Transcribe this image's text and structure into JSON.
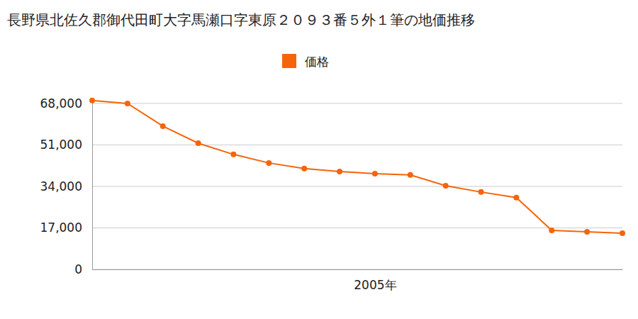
{
  "chart_data": {
    "type": "line",
    "title": "長野県北佐久郡御代田町大字馬瀬口字東原２０９３番５外１筆の地価推移",
    "categories": [
      null,
      null,
      null,
      null,
      null,
      null,
      null,
      null,
      "2005年",
      null,
      null,
      null,
      null,
      null,
      null,
      null
    ],
    "series": [
      {
        "name": "価格",
        "color": "#f5640a",
        "marker": "circle",
        "values": [
          69200,
          68000,
          58700,
          51700,
          47100,
          43600,
          41300,
          40100,
          39200,
          38700,
          34300,
          31700,
          29400,
          16000,
          15400,
          14800
        ]
      }
    ],
    "ylim": [
      0,
      70000
    ],
    "yticks": [
      0,
      {
        "value": 17000,
        "label": "17,000"
      },
      {
        "value": 34000,
        "label": "34,000"
      },
      {
        "value": 51000,
        "label": "51,000"
      },
      {
        "value": 68000,
        "label": "68,000"
      }
    ],
    "grid": true,
    "legend": "top"
  }
}
